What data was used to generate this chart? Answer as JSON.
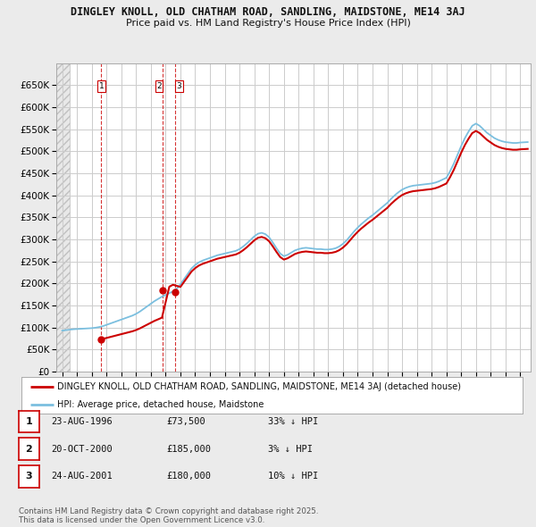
{
  "title": "DINGLEY KNOLL, OLD CHATHAM ROAD, SANDLING, MAIDSTONE, ME14 3AJ",
  "subtitle": "Price paid vs. HM Land Registry's House Price Index (HPI)",
  "ylim": [
    0,
    700000
  ],
  "yticks": [
    0,
    50000,
    100000,
    150000,
    200000,
    250000,
    300000,
    350000,
    400000,
    450000,
    500000,
    550000,
    600000,
    650000
  ],
  "xlim_start": 1993.6,
  "xlim_end": 2025.7,
  "hpi_color": "#7bbfdf",
  "price_color": "#cc0000",
  "bg_color": "#ebebeb",
  "plot_bg": "#ffffff",
  "grid_color": "#cccccc",
  "sale_points": [
    {
      "year": 1996.646,
      "price": 73500,
      "label": "1"
    },
    {
      "year": 2000.804,
      "price": 185000,
      "label": "2"
    },
    {
      "year": 2001.646,
      "price": 180000,
      "label": "3"
    }
  ],
  "legend_label_red": "DINGLEY KNOLL, OLD CHATHAM ROAD, SANDLING, MAIDSTONE, ME14 3AJ (detached house)",
  "legend_label_blue": "HPI: Average price, detached house, Maidstone",
  "table_rows": [
    {
      "num": "1",
      "date": "23-AUG-1996",
      "price": "£73,500",
      "hpi": "33% ↓ HPI"
    },
    {
      "num": "2",
      "date": "20-OCT-2000",
      "price": "£185,000",
      "hpi": "3% ↓ HPI"
    },
    {
      "num": "3",
      "date": "24-AUG-2001",
      "price": "£180,000",
      "hpi": "10% ↓ HPI"
    }
  ],
  "footer": "Contains HM Land Registry data © Crown copyright and database right 2025.\nThis data is licensed under the Open Government Licence v3.0."
}
